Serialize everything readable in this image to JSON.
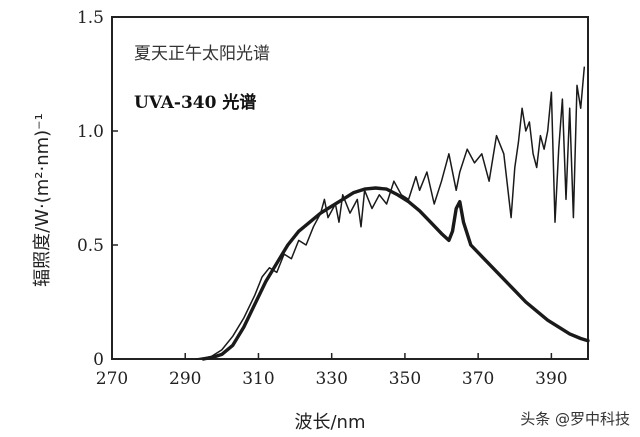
{
  "chart_data": {
    "type": "line",
    "xlabel": "波长/nm",
    "ylabel": "辐照度/W·(m²·nm)⁻¹",
    "xlim": [
      270,
      400
    ],
    "ylim": [
      0,
      1.5
    ],
    "x_ticks": [
      "270",
      "290",
      "310",
      "330",
      "350",
      "370",
      "390"
    ],
    "y_ticks": [
      "0",
      "0.5",
      "1.0",
      "1.5"
    ],
    "grid": false,
    "legend": [
      "夏天正午太阳光谱",
      "UVA-340 光谱"
    ],
    "legend_position": "top-left",
    "series": [
      {
        "name": "夏天正午太阳光谱",
        "style": "thin",
        "x": [
          293,
          297,
          300,
          303,
          306,
          309,
          311,
          313,
          315,
          317,
          319,
          321,
          323,
          325,
          327,
          328,
          329,
          331,
          332,
          333,
          335,
          337,
          338,
          339,
          341,
          343,
          345,
          347,
          349,
          351,
          353,
          354,
          356,
          358,
          360,
          362,
          364,
          365,
          367,
          369,
          371,
          373,
          375,
          377,
          379,
          380,
          381,
          382,
          383,
          384,
          385,
          386,
          387,
          388,
          389,
          390,
          391,
          392,
          393,
          394,
          395,
          396,
          397,
          398,
          399
        ],
        "y": [
          0.0,
          0.01,
          0.04,
          0.1,
          0.18,
          0.28,
          0.36,
          0.4,
          0.38,
          0.46,
          0.44,
          0.52,
          0.5,
          0.58,
          0.64,
          0.7,
          0.62,
          0.68,
          0.6,
          0.72,
          0.64,
          0.7,
          0.58,
          0.74,
          0.66,
          0.72,
          0.68,
          0.78,
          0.72,
          0.7,
          0.8,
          0.74,
          0.82,
          0.68,
          0.78,
          0.9,
          0.74,
          0.82,
          0.92,
          0.86,
          0.9,
          0.78,
          0.98,
          0.9,
          0.62,
          0.84,
          0.95,
          1.1,
          1.0,
          1.04,
          0.9,
          0.84,
          0.98,
          0.92,
          1.0,
          1.17,
          0.6,
          0.92,
          1.14,
          0.7,
          1.1,
          0.62,
          1.2,
          1.1,
          1.28
        ]
      },
      {
        "name": "UVA-340 光谱",
        "style": "bold",
        "x": [
          295,
          298,
          300,
          303,
          306,
          309,
          312,
          315,
          318,
          321,
          324,
          327,
          330,
          333,
          336,
          339,
          342,
          345,
          348,
          351,
          354,
          357,
          360,
          362,
          363,
          364,
          365,
          366,
          368,
          371,
          374,
          377,
          380,
          383,
          386,
          389,
          392,
          395,
          398,
          400
        ],
        "y": [
          0.0,
          0.01,
          0.02,
          0.06,
          0.14,
          0.24,
          0.34,
          0.42,
          0.5,
          0.56,
          0.6,
          0.64,
          0.67,
          0.7,
          0.73,
          0.745,
          0.75,
          0.745,
          0.72,
          0.69,
          0.65,
          0.6,
          0.55,
          0.52,
          0.56,
          0.66,
          0.69,
          0.6,
          0.5,
          0.45,
          0.4,
          0.35,
          0.3,
          0.25,
          0.21,
          0.17,
          0.14,
          0.11,
          0.09,
          0.08
        ]
      }
    ]
  },
  "watermark": "头条 @罗中科技"
}
